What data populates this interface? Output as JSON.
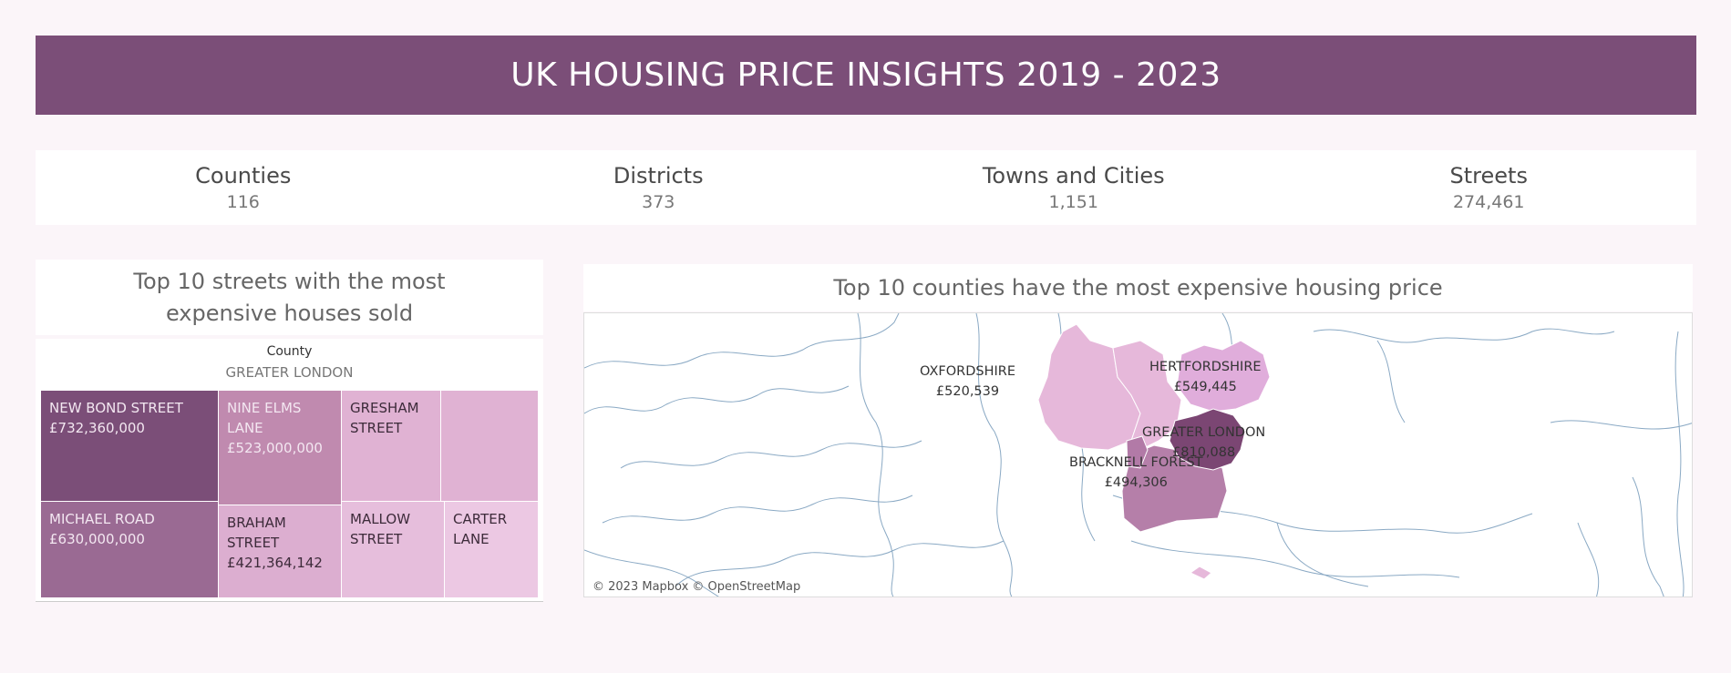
{
  "header": {
    "title": "UK HOUSING PRICE INSIGHTS 2019 - 2023"
  },
  "kpis": [
    {
      "label": "Counties",
      "value": "116"
    },
    {
      "label": "Districts",
      "value": "373"
    },
    {
      "label": "Towns and Cities",
      "value": "1,151"
    },
    {
      "label": "Streets",
      "value": "274,461"
    }
  ],
  "treemap": {
    "title": "Top 10 streets with the most expensive houses sold",
    "filter_label": "County",
    "filter_value": "GREATER LONDON",
    "cells": [
      {
        "lines": [
          "NEW BOND STREET",
          "£732,360,000"
        ],
        "color": "#7b4e78"
      },
      {
        "lines": [
          "NINE ELMS",
          "LANE",
          "£523,000,000"
        ],
        "color": "#c08aaf"
      },
      {
        "lines": [
          "GRESHAM",
          "STREET"
        ],
        "color": "#e0b2d3"
      },
      {
        "lines": [],
        "color": "#e0b2d3"
      },
      {
        "lines": [
          "MICHAEL ROAD",
          "£630,000,000"
        ],
        "color": "#9a6a93"
      },
      {
        "lines": [
          "BRAHAM",
          "STREET",
          "£421,364,142"
        ],
        "color": "#dcaed0"
      },
      {
        "lines": [
          "MALLOW",
          "STREET"
        ],
        "color": "#e6bedc"
      },
      {
        "lines": [
          "CARTER",
          "LANE"
        ],
        "color": "#ecc8e3"
      }
    ]
  },
  "map": {
    "title": "Top 10 counties have the most expensive housing price",
    "attribution": "© 2023 Mapbox © OpenStreetMap",
    "counties": [
      {
        "name": "OXFORDSHIRE",
        "price": "£520,539",
        "color": "#e6b8da"
      },
      {
        "name": "HERTFORDSHIRE",
        "price": "£549,445",
        "color": "#e0addb"
      },
      {
        "name": "GREATER LONDON",
        "price": "£810,088",
        "color": "#7b4673"
      },
      {
        "name": "BRACKNELL FOREST",
        "price": "£494,306",
        "color": "#b27aa7"
      }
    ],
    "surrey_color": "#b57fa9",
    "land_border_color": "#8aa9c4"
  }
}
